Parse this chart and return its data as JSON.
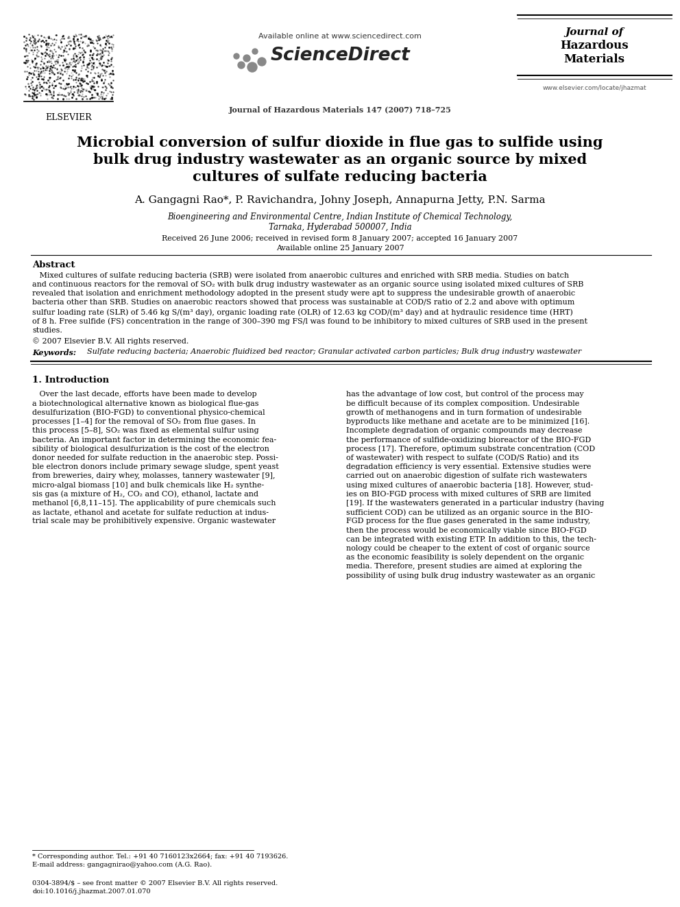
{
  "bg_color": "#ffffff",
  "title_line1": "Microbial conversion of sulfur dioxide in flue gas to sulfide using",
  "title_line2": "bulk drug industry wastewater as an organic source by mixed",
  "title_line3": "cultures of sulfate reducing bacteria",
  "authors": "A. Gangagni Rao*, P. Ravichandra, Johny Joseph, Annapurna Jetty, P.N. Sarma",
  "affil1": "Bioengineering and Environmental Centre, Indian Institute of Chemical Technology,",
  "affil2": "Tarnaka, Hyderabad 500007, India",
  "dates": "Received 26 June 2006; received in revised form 8 January 2007; accepted 16 January 2007",
  "available": "Available online 25 January 2007",
  "header_avail": "Available online at www.sciencedirect.com",
  "header_sd": "ScienceDirect",
  "header_journal_line": "Journal of Hazardous Materials 147 (2007) 718–725",
  "jname1": "Journal of",
  "jname2": "Hazardous",
  "jname3": "Materials",
  "journal_url": "www.elsevier.com/locate/jhazmat",
  "elsevier_label": "ELSEVIER",
  "abstract_title": "Abstract",
  "abstract_text": "   Mixed cultures of sulfate reducing bacteria (SRB) were isolated from anaerobic cultures and enriched with SRB media. Studies on batch\nand continuous reactors for the removal of SO₂ with bulk drug industry wastewater as an organic source using isolated mixed cultures of SRB\nrevealed that isolation and enrichment methodology adopted in the present study were apt to suppress the undesirable growth of anaerobic\nbacteria other than SRB. Studies on anaerobic reactors showed that process was sustainable at COD/S ratio of 2.2 and above with optimum\nsulfur loading rate (SLR) of 5.46 kg S/(m³ day), organic loading rate (OLR) of 12.63 kg COD/(m³ day) and at hydraulic residence time (HRT)\nof 8 h. Free sulfide (FS) concentration in the range of 300–390 mg FS/l was found to be inhibitory to mixed cultures of SRB used in the present\nstudies.",
  "copyright": "© 2007 Elsevier B.V. All rights reserved.",
  "keywords_label": "Keywords:",
  "keywords_text": "  Sulfate reducing bacteria; Anaerobic fluidized bed reactor; Granular activated carbon particles; Bulk drug industry wastewater",
  "section1_title": "1. Introduction",
  "intro_col1_lines": [
    "   Over the last decade, efforts have been made to develop",
    "a biotechnological alternative known as biological flue-gas",
    "desulfurization (BIO-FGD) to conventional physico-chemical",
    "processes [1–4] for the removal of SO₂ from flue gases. In",
    "this process [5–8], SO₂ was fixed as elemental sulfur using",
    "bacteria. An important factor in determining the economic fea-",
    "sibility of biological desulfurization is the cost of the electron",
    "donor needed for sulfate reduction in the anaerobic step. Possi-",
    "ble electron donors include primary sewage sludge, spent yeast",
    "from breweries, dairy whey, molasses, tannery wastewater [9],",
    "micro-algal biomass [10] and bulk chemicals like H₂ synthe-",
    "sis gas (a mixture of H₂, CO₂ and CO), ethanol, lactate and",
    "methanol [6,8,11–15]. The applicability of pure chemicals such",
    "as lactate, ethanol and acetate for sulfate reduction at indus-",
    "trial scale may be prohibitively expensive. Organic wastewater"
  ],
  "intro_col2_lines": [
    "has the advantage of low cost, but control of the process may",
    "be difficult because of its complex composition. Undesirable",
    "growth of methanogens and in turn formation of undesirable",
    "byproducts like methane and acetate are to be minimized [16].",
    "Incomplete degradation of organic compounds may decrease",
    "the performance of sulfide-oxidizing bioreactor of the BIO-FGD",
    "process [17]. Therefore, optimum substrate concentration (COD",
    "of wastewater) with respect to sulfate (COD/S Ratio) and its",
    "degradation efficiency is very essential. Extensive studies were",
    "carried out on anaerobic digestion of sulfate rich wastewaters",
    "using mixed cultures of anaerobic bacteria [18]. However, stud-",
    "ies on BIO-FGD process with mixed cultures of SRB are limited",
    "[19]. If the wastewaters generated in a particular industry (having",
    "sufficient COD) can be utilized as an organic source in the BIO-",
    "FGD process for the flue gases generated in the same industry,",
    "then the process would be economically viable since BIO-FGD",
    "can be integrated with existing ETP. In addition to this, the tech-",
    "nology could be cheaper to the extent of cost of organic source",
    "as the economic feasibility is solely dependent on the organic",
    "media. Therefore, present studies are aimed at exploring the",
    "possibility of using bulk drug industry wastewater as an organic"
  ],
  "footnote1": "* Corresponding author. Tel.: +91 40 7160123x2664; fax: +91 40 7193626.",
  "footnote2": "E-mail address: gangagnirao@yahoo.com (A.G. Rao).",
  "footer1": "0304-3894/$ – see front matter © 2007 Elsevier B.V. All rights reserved.",
  "footer2": "doi:10.1016/j.jhazmat.2007.01.070"
}
